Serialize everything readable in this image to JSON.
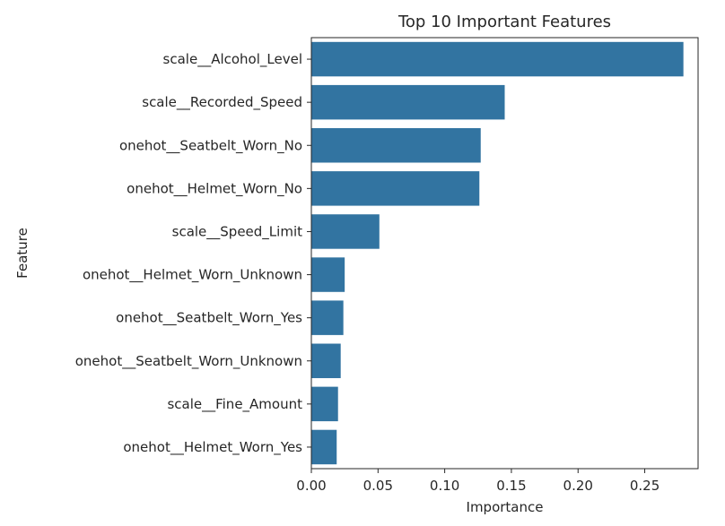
{
  "chart_data": {
    "type": "bar",
    "orientation": "horizontal",
    "title": "Top 10 Important Features",
    "xlabel": "Importance",
    "ylabel": "Feature",
    "categories": [
      "scale__Alcohol_Level",
      "scale__Recorded_Speed",
      "onehot__Seatbelt_Worn_No",
      "onehot__Helmet_Worn_No",
      "scale__Speed_Limit",
      "onehot__Helmet_Worn_Unknown",
      "onehot__Seatbelt_Worn_Yes",
      "onehot__Seatbelt_Worn_Unknown",
      "scale__Fine_Amount",
      "onehot__Helmet_Worn_Yes"
    ],
    "values": [
      0.279,
      0.145,
      0.127,
      0.126,
      0.051,
      0.025,
      0.024,
      0.022,
      0.02,
      0.019
    ],
    "xlim": [
      0,
      0.29
    ],
    "xticks": [
      "0.00",
      "0.05",
      "0.10",
      "0.15",
      "0.20",
      "0.25"
    ],
    "grid": false,
    "bar_color": "#3274a1"
  }
}
